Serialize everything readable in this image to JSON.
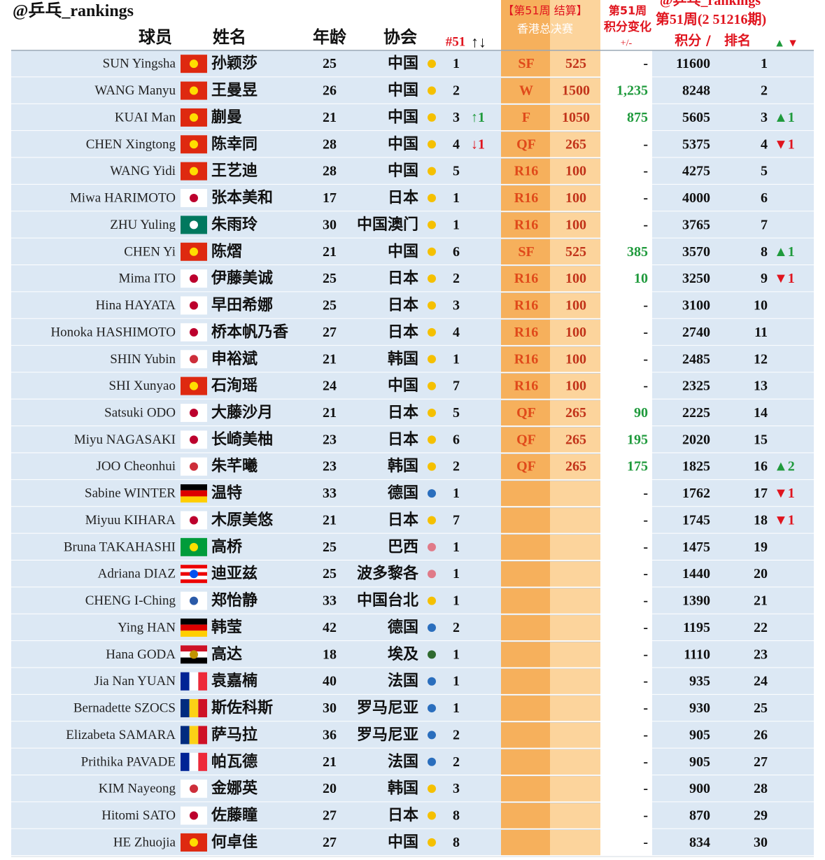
{
  "header": {
    "handle": "@乒乓_rankings",
    "col_player": "球员",
    "col_name": "姓名",
    "col_age": "年龄",
    "col_assoc": "协会",
    "col_rank": "#51",
    "col_rank_arrows": "↑↓",
    "hk_line1": "【第51周 结算】",
    "hk_line2": "香港总决赛",
    "chg_line1": "第51周",
    "chg_line2": "积分变化",
    "chg_line3": "+/-",
    "rk_line0": "@乒乓_rankings",
    "rk_line1": "第51周(2 51216期)",
    "rk_points": "积分 /",
    "rk_rank": "排名",
    "rk_up": "▲",
    "rk_down": "▼"
  },
  "colors": {
    "up": "#1f9a3c",
    "down": "#e0141e"
  },
  "table": {
    "rows": [
      {
        "en": "SUN Yingsha",
        "zh": "孙颖莎",
        "age": 25,
        "assoc": "中国",
        "dot": "#f5c000",
        "flag": {
          "s": [
            "#de2910"
          ],
          "m": "#ffde00"
        },
        "r51": 1,
        "move": null,
        "stage": "SF",
        "pts": 525,
        "chg": "-",
        "points": 11600,
        "rank": 1,
        "rmove": null
      },
      {
        "en": "WANG Manyu",
        "zh": "王曼昱",
        "age": 26,
        "assoc": "中国",
        "dot": "#f5c000",
        "flag": {
          "s": [
            "#de2910"
          ],
          "m": "#ffde00"
        },
        "r51": 2,
        "move": null,
        "stage": "W",
        "pts": 1500,
        "chg": "1,235",
        "points": 8248,
        "rank": 2,
        "rmove": null
      },
      {
        "en": "KUAI Man",
        "zh": "蒯曼",
        "age": 21,
        "assoc": "中国",
        "dot": "#f5c000",
        "flag": {
          "s": [
            "#de2910"
          ],
          "m": "#ffde00"
        },
        "r51": 3,
        "move": {
          "text": "↑1",
          "dir": "up"
        },
        "stage": "F",
        "pts": 1050,
        "chg": "875",
        "points": 5605,
        "rank": 3,
        "rmove": {
          "text": "▲1",
          "dir": "up"
        }
      },
      {
        "en": "CHEN Xingtong",
        "zh": "陈幸同",
        "age": 28,
        "assoc": "中国",
        "dot": "#f5c000",
        "flag": {
          "s": [
            "#de2910"
          ],
          "m": "#ffde00"
        },
        "r51": 4,
        "move": {
          "text": "↓1",
          "dir": "down"
        },
        "stage": "QF",
        "pts": 265,
        "chg": "-",
        "points": 5375,
        "rank": 4,
        "rmove": {
          "text": "▼1",
          "dir": "down"
        }
      },
      {
        "en": "WANG Yidi",
        "zh": "王艺迪",
        "age": 28,
        "assoc": "中国",
        "dot": "#f5c000",
        "flag": {
          "s": [
            "#de2910"
          ],
          "m": "#ffde00"
        },
        "r51": 5,
        "move": null,
        "stage": "R16",
        "pts": 100,
        "chg": "-",
        "points": 4275,
        "rank": 5,
        "rmove": null
      },
      {
        "en": "Miwa HARIMOTO",
        "zh": "张本美和",
        "age": 17,
        "assoc": "日本",
        "dot": "#f5c000",
        "flag": {
          "s": [
            "#ffffff"
          ],
          "m": "#bc002d"
        },
        "r51": 1,
        "move": null,
        "stage": "R16",
        "pts": 100,
        "chg": "-",
        "points": 4000,
        "rank": 6,
        "rmove": null
      },
      {
        "en": "ZHU Yuling",
        "zh": "朱雨玲",
        "age": 30,
        "assoc": "中国澳门",
        "dot": "#f5c000",
        "flag": {
          "s": [
            "#00785e"
          ],
          "m": "#ffffff"
        },
        "r51": 1,
        "move": null,
        "stage": "R16",
        "pts": 100,
        "chg": "-",
        "points": 3765,
        "rank": 7,
        "rmove": null
      },
      {
        "en": "CHEN Yi",
        "zh": "陈熠",
        "age": 21,
        "assoc": "中国",
        "dot": "#f5c000",
        "flag": {
          "s": [
            "#de2910"
          ],
          "m": "#ffde00"
        },
        "r51": 6,
        "move": null,
        "stage": "SF",
        "pts": 525,
        "chg": "385",
        "points": 3570,
        "rank": 8,
        "rmove": {
          "text": "▲1",
          "dir": "up"
        }
      },
      {
        "en": "Mima ITO",
        "zh": "伊藤美诚",
        "age": 25,
        "assoc": "日本",
        "dot": "#f5c000",
        "flag": {
          "s": [
            "#ffffff"
          ],
          "m": "#bc002d"
        },
        "r51": 2,
        "move": null,
        "stage": "R16",
        "pts": 100,
        "chg": "10",
        "points": 3250,
        "rank": 9,
        "rmove": {
          "text": "▼1",
          "dir": "down"
        }
      },
      {
        "en": "Hina HAYATA",
        "zh": "早田希娜",
        "age": 25,
        "assoc": "日本",
        "dot": "#f5c000",
        "flag": {
          "s": [
            "#ffffff"
          ],
          "m": "#bc002d"
        },
        "r51": 3,
        "move": null,
        "stage": "R16",
        "pts": 100,
        "chg": "-",
        "points": 3100,
        "rank": 10,
        "rmove": null
      },
      {
        "en": "Honoka HASHIMOTO",
        "zh": "桥本帆乃香",
        "age": 27,
        "assoc": "日本",
        "dot": "#f5c000",
        "flag": {
          "s": [
            "#ffffff"
          ],
          "m": "#bc002d"
        },
        "r51": 4,
        "move": null,
        "stage": "R16",
        "pts": 100,
        "chg": "-",
        "points": 2740,
        "rank": 11,
        "rmove": null
      },
      {
        "en": "SHIN Yubin",
        "zh": "申裕斌",
        "age": 21,
        "assoc": "韩国",
        "dot": "#f5c000",
        "flag": {
          "s": [
            "#ffffff"
          ],
          "m": "#cd2e3a"
        },
        "r51": 1,
        "move": null,
        "stage": "R16",
        "pts": 100,
        "chg": "-",
        "points": 2485,
        "rank": 12,
        "rmove": null
      },
      {
        "en": "SHI Xunyao",
        "zh": "石洵瑶",
        "age": 24,
        "assoc": "中国",
        "dot": "#f5c000",
        "flag": {
          "s": [
            "#de2910"
          ],
          "m": "#ffde00"
        },
        "r51": 7,
        "move": null,
        "stage": "R16",
        "pts": 100,
        "chg": "-",
        "points": 2325,
        "rank": 13,
        "rmove": null
      },
      {
        "en": "Satsuki ODO",
        "zh": "大藤沙月",
        "age": 21,
        "assoc": "日本",
        "dot": "#f5c000",
        "flag": {
          "s": [
            "#ffffff"
          ],
          "m": "#bc002d"
        },
        "r51": 5,
        "move": null,
        "stage": "QF",
        "pts": 265,
        "chg": "90",
        "points": 2225,
        "rank": 14,
        "rmove": null
      },
      {
        "en": "Miyu NAGASAKI",
        "zh": "长崎美柚",
        "age": 23,
        "assoc": "日本",
        "dot": "#f5c000",
        "flag": {
          "s": [
            "#ffffff"
          ],
          "m": "#bc002d"
        },
        "r51": 6,
        "move": null,
        "stage": "QF",
        "pts": 265,
        "chg": "195",
        "points": 2020,
        "rank": 15,
        "rmove": null
      },
      {
        "en": "JOO Cheonhui",
        "zh": "朱芊曦",
        "age": 23,
        "assoc": "韩国",
        "dot": "#f5c000",
        "flag": {
          "s": [
            "#ffffff"
          ],
          "m": "#cd2e3a"
        },
        "r51": 2,
        "move": null,
        "stage": "QF",
        "pts": 265,
        "chg": "175",
        "points": 1825,
        "rank": 16,
        "rmove": {
          "text": "▲2",
          "dir": "up"
        }
      },
      {
        "en": "Sabine WINTER",
        "zh": "温特",
        "age": 33,
        "assoc": "德国",
        "dot": "#2a6ebd",
        "flag": {
          "s": [
            "#000000",
            "#dd0000",
            "#ffce00"
          ],
          "d": "h"
        },
        "r51": 1,
        "move": null,
        "stage": null,
        "pts": null,
        "chg": "-",
        "points": 1762,
        "rank": 17,
        "rmove": {
          "text": "▼1",
          "dir": "down"
        }
      },
      {
        "en": "Miyuu KIHARA",
        "zh": "木原美悠",
        "age": 21,
        "assoc": "日本",
        "dot": "#f5c000",
        "flag": {
          "s": [
            "#ffffff"
          ],
          "m": "#bc002d"
        },
        "r51": 7,
        "move": null,
        "stage": null,
        "pts": null,
        "chg": "-",
        "points": 1745,
        "rank": 18,
        "rmove": {
          "text": "▼1",
          "dir": "down"
        }
      },
      {
        "en": "Bruna TAKAHASHI",
        "zh": "高桥",
        "age": 25,
        "assoc": "巴西",
        "dot": "#e07a88",
        "flag": {
          "s": [
            "#009c3b"
          ],
          "m": "#ffdf00"
        },
        "r51": 1,
        "move": null,
        "stage": null,
        "pts": null,
        "chg": "-",
        "points": 1475,
        "rank": 19,
        "rmove": null
      },
      {
        "en": "Adriana DIAZ",
        "zh": "迪亚兹",
        "age": 25,
        "assoc": "波多黎各",
        "dot": "#e07a88",
        "flag": {
          "s": [
            "#ed0000",
            "#ffffff",
            "#ed0000",
            "#ffffff",
            "#ed0000"
          ],
          "d": "h",
          "m": "#0050f0"
        },
        "r51": 1,
        "move": null,
        "stage": null,
        "pts": null,
        "chg": "-",
        "points": 1440,
        "rank": 20,
        "rmove": null
      },
      {
        "en": "CHENG I-Ching",
        "zh": "郑怡静",
        "age": 33,
        "assoc": "中国台北",
        "dot": "#f5c000",
        "flag": {
          "s": [
            "#ffffff"
          ],
          "m": "#2a5aa8"
        },
        "r51": 1,
        "move": null,
        "stage": null,
        "pts": null,
        "chg": "-",
        "points": 1390,
        "rank": 21,
        "rmove": null
      },
      {
        "en": "Ying HAN",
        "zh": "韩莹",
        "age": 42,
        "assoc": "德国",
        "dot": "#2a6ebd",
        "flag": {
          "s": [
            "#000000",
            "#dd0000",
            "#ffce00"
          ],
          "d": "h"
        },
        "r51": 2,
        "move": null,
        "stage": null,
        "pts": null,
        "chg": "-",
        "points": 1195,
        "rank": 22,
        "rmove": null
      },
      {
        "en": "Hana GODA",
        "zh": "高达",
        "age": 18,
        "assoc": "埃及",
        "dot": "#2f6a2f",
        "flag": {
          "s": [
            "#ce1126",
            "#ffffff",
            "#000000"
          ],
          "d": "h",
          "m": "#c09300"
        },
        "r51": 1,
        "move": null,
        "stage": null,
        "pts": null,
        "chg": "-",
        "points": 1110,
        "rank": 23,
        "rmove": null
      },
      {
        "en": "Jia Nan YUAN",
        "zh": "袁嘉楠",
        "age": 40,
        "assoc": "法国",
        "dot": "#2a6ebd",
        "flag": {
          "s": [
            "#002395",
            "#ffffff",
            "#ed2939"
          ],
          "d": "v"
        },
        "r51": 1,
        "move": null,
        "stage": null,
        "pts": null,
        "chg": "-",
        "points": 935,
        "rank": 24,
        "rmove": null
      },
      {
        "en": "Bernadette SZOCS",
        "zh": "斯佐科斯",
        "age": 30,
        "assoc": "罗马尼亚",
        "dot": "#2a6ebd",
        "flag": {
          "s": [
            "#002b7f",
            "#fcd116",
            "#ce1126"
          ],
          "d": "v"
        },
        "r51": 1,
        "move": null,
        "stage": null,
        "pts": null,
        "chg": "-",
        "points": 930,
        "rank": 25,
        "rmove": null
      },
      {
        "en": "Elizabeta SAMARA",
        "zh": "萨马拉",
        "age": 36,
        "assoc": "罗马尼亚",
        "dot": "#2a6ebd",
        "flag": {
          "s": [
            "#002b7f",
            "#fcd116",
            "#ce1126"
          ],
          "d": "v"
        },
        "r51": 2,
        "move": null,
        "stage": null,
        "pts": null,
        "chg": "-",
        "points": 905,
        "rank": 26,
        "rmove": null
      },
      {
        "en": "Prithika PAVADE",
        "zh": "帕瓦德",
        "age": 21,
        "assoc": "法国",
        "dot": "#2a6ebd",
        "flag": {
          "s": [
            "#002395",
            "#ffffff",
            "#ed2939"
          ],
          "d": "v"
        },
        "r51": 2,
        "move": null,
        "stage": null,
        "pts": null,
        "chg": "-",
        "points": 905,
        "rank": 27,
        "rmove": null
      },
      {
        "en": "KIM Nayeong",
        "zh": "金娜英",
        "age": 20,
        "assoc": "韩国",
        "dot": "#f5c000",
        "flag": {
          "s": [
            "#ffffff"
          ],
          "m": "#cd2e3a"
        },
        "r51": 3,
        "move": null,
        "stage": null,
        "pts": null,
        "chg": "-",
        "points": 900,
        "rank": 28,
        "rmove": null
      },
      {
        "en": "Hitomi SATO",
        "zh": "佐藤瞳",
        "age": 27,
        "assoc": "日本",
        "dot": "#f5c000",
        "flag": {
          "s": [
            "#ffffff"
          ],
          "m": "#bc002d"
        },
        "r51": 8,
        "move": null,
        "stage": null,
        "pts": null,
        "chg": "-",
        "points": 870,
        "rank": 29,
        "rmove": null
      },
      {
        "en": "HE Zhuojia",
        "zh": "何卓佳",
        "age": 27,
        "assoc": "中国",
        "dot": "#f5c000",
        "flag": {
          "s": [
            "#de2910"
          ],
          "m": "#ffde00"
        },
        "r51": 8,
        "move": null,
        "stage": null,
        "pts": null,
        "chg": "-",
        "points": 834,
        "rank": 30,
        "rmove": null
      }
    ]
  }
}
